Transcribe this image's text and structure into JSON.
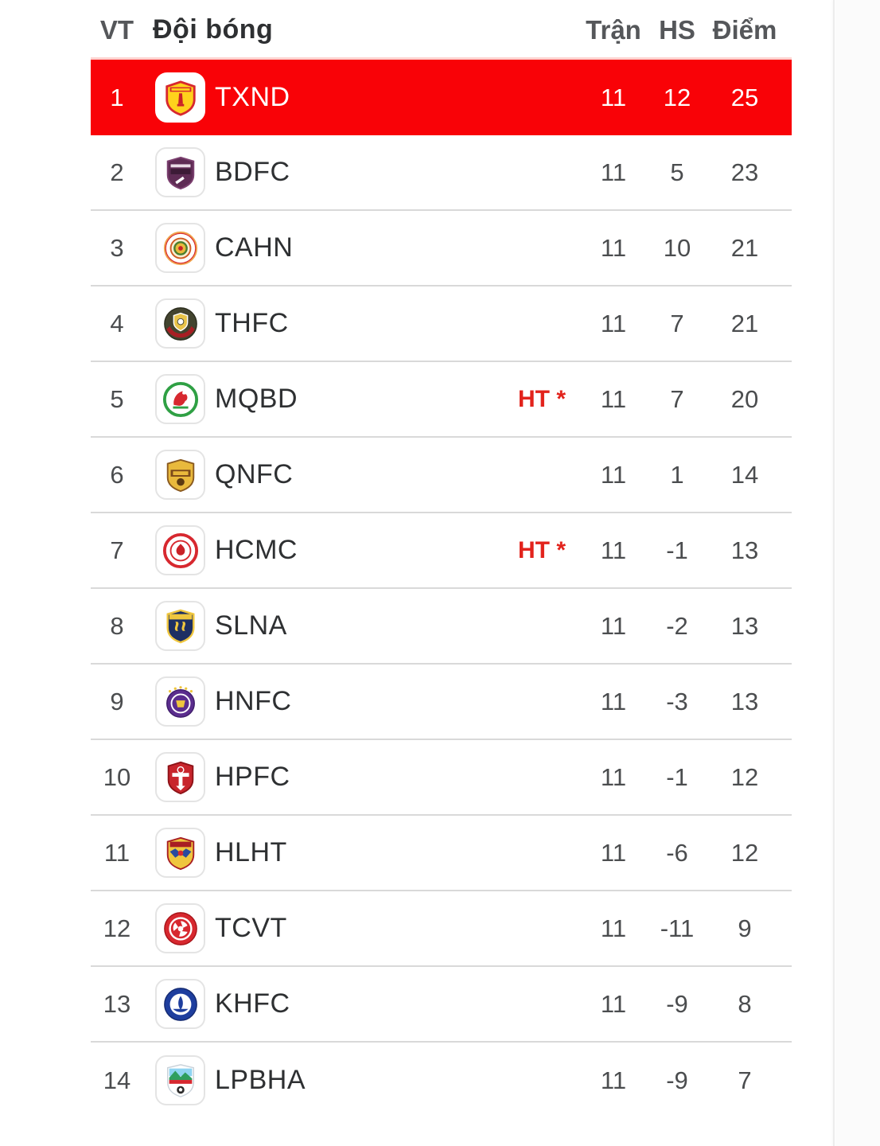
{
  "header": {
    "position_label": "VT",
    "team_label": "Đội bóng",
    "matches_label": "Trận",
    "goal_diff_label": "HS",
    "points_label": "Điểm"
  },
  "colors": {
    "highlight_row": "#f90207",
    "highlight_edge": "#fdd3d0",
    "note_red": "#e2231c",
    "separator": "#d9d9d9",
    "header_text": "#55575a"
  },
  "table": {
    "rows": [
      {
        "pos": "1",
        "code": "txnd",
        "name": "TXND",
        "note": "",
        "played": "11",
        "gd": "12",
        "pts": "25",
        "highlighted": true
      },
      {
        "pos": "2",
        "code": "bdfc",
        "name": "BDFC",
        "note": "",
        "played": "11",
        "gd": "5",
        "pts": "23",
        "highlighted": false
      },
      {
        "pos": "3",
        "code": "cahn",
        "name": "CAHN",
        "note": "",
        "played": "11",
        "gd": "10",
        "pts": "21",
        "highlighted": false
      },
      {
        "pos": "4",
        "code": "thfc",
        "name": "THFC",
        "note": "",
        "played": "11",
        "gd": "7",
        "pts": "21",
        "highlighted": false
      },
      {
        "pos": "5",
        "code": "mqbd",
        "name": "MQBD",
        "note": "HT *",
        "played": "11",
        "gd": "7",
        "pts": "20",
        "highlighted": false
      },
      {
        "pos": "6",
        "code": "qnfc",
        "name": "QNFC",
        "note": "",
        "played": "11",
        "gd": "1",
        "pts": "14",
        "highlighted": false
      },
      {
        "pos": "7",
        "code": "hcmc",
        "name": "HCMC",
        "note": "HT *",
        "played": "11",
        "gd": "-1",
        "pts": "13",
        "highlighted": false
      },
      {
        "pos": "8",
        "code": "slna",
        "name": "SLNA",
        "note": "",
        "played": "11",
        "gd": "-2",
        "pts": "13",
        "highlighted": false
      },
      {
        "pos": "9",
        "code": "hnfc",
        "name": "HNFC",
        "note": "",
        "played": "11",
        "gd": "-3",
        "pts": "13",
        "highlighted": false
      },
      {
        "pos": "10",
        "code": "hpfc",
        "name": "HPFC",
        "note": "",
        "played": "11",
        "gd": "-1",
        "pts": "12",
        "highlighted": false
      },
      {
        "pos": "11",
        "code": "hlht",
        "name": "HLHT",
        "note": "",
        "played": "11",
        "gd": "-6",
        "pts": "12",
        "highlighted": false
      },
      {
        "pos": "12",
        "code": "tcvt",
        "name": "TCVT",
        "note": "",
        "played": "11",
        "gd": "-11",
        "pts": "9",
        "highlighted": false
      },
      {
        "pos": "13",
        "code": "khfc",
        "name": "KHFC",
        "note": "",
        "played": "11",
        "gd": "-9",
        "pts": "8",
        "highlighted": false
      },
      {
        "pos": "14",
        "code": "lpbha",
        "name": "LPBHA",
        "note": "",
        "played": "11",
        "gd": "-9",
        "pts": "7",
        "highlighted": false
      }
    ]
  }
}
